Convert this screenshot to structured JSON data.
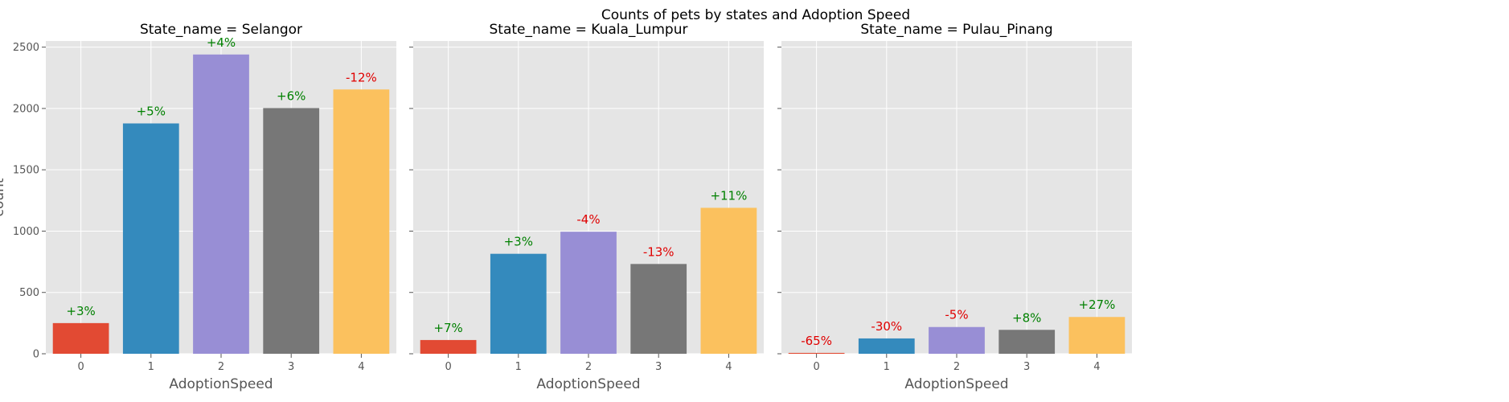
{
  "chart_data": {
    "type": "bar",
    "title": "Counts of pets by states and Adoption Speed",
    "xlabel": "AdoptionSpeed",
    "ylabel": "count",
    "ylim": [
      0,
      2550
    ],
    "yticks": [
      0,
      500,
      1000,
      1500,
      2000,
      2500
    ],
    "grid": true,
    "categories": [
      "0",
      "1",
      "2",
      "3",
      "4"
    ],
    "category_colors": [
      "#E24A33",
      "#348ABD",
      "#988ED5",
      "#777777",
      "#FBC15E"
    ],
    "positive_color": "#008000",
    "negative_color": "#E00000",
    "facets": [
      {
        "title": "State_name = Selangor",
        "values": [
          250,
          1878,
          2440,
          2003,
          2155
        ],
        "annotations": [
          "+3%",
          "+5%",
          "+4%",
          "+6%",
          "-12%"
        ]
      },
      {
        "title": "State_name = Kuala_Lumpur",
        "values": [
          112,
          815,
          995,
          732,
          1190
        ],
        "annotations": [
          "+7%",
          "+3%",
          "-4%",
          "-13%",
          "+11%"
        ]
      },
      {
        "title": "State_name = Pulau_Pinang",
        "values": [
          7,
          125,
          218,
          195,
          300
        ],
        "annotations": [
          "-65%",
          "-30%",
          "-5%",
          "+8%",
          "+27%"
        ]
      }
    ]
  }
}
